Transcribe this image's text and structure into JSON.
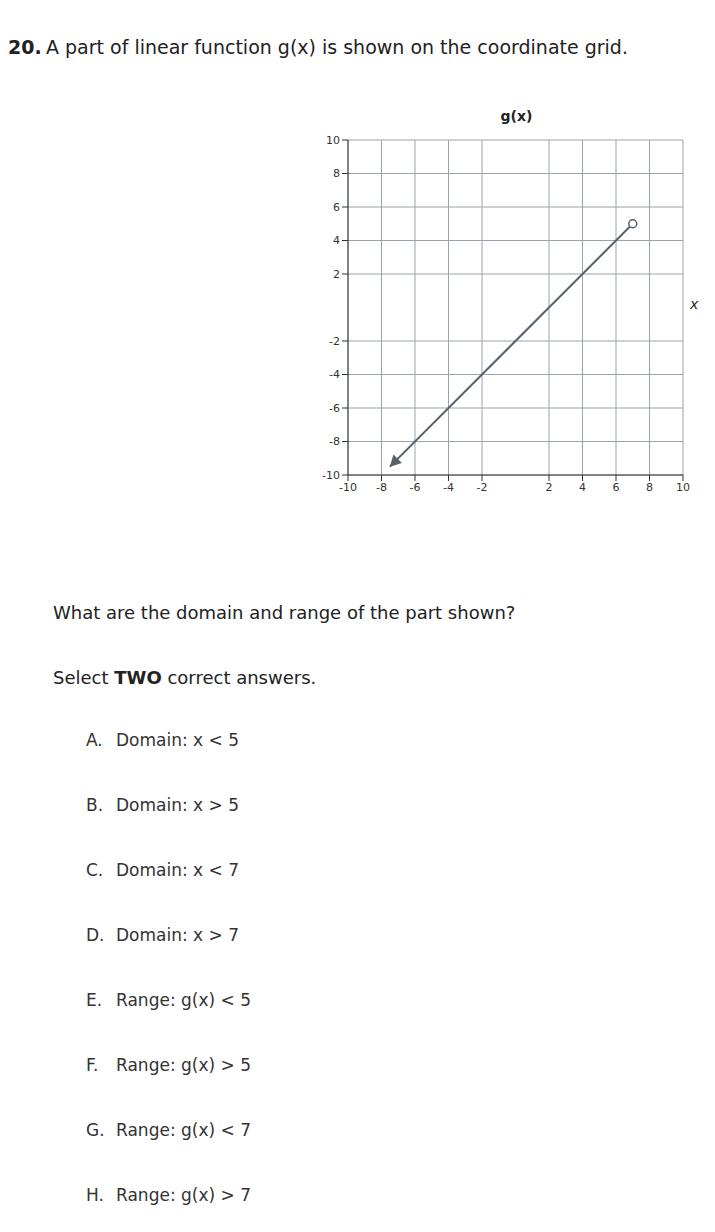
{
  "question": {
    "number": "20.",
    "text": "A part of linear function g(x) is shown on the coordinate grid."
  },
  "chart_data": {
    "type": "line",
    "x_label": "x",
    "y_label": "g(x)",
    "xlim": [
      -10,
      10
    ],
    "ylim": [
      -10,
      10
    ],
    "xticks": [
      -10,
      -8,
      -6,
      -4,
      -2,
      2,
      4,
      6,
      8,
      10
    ],
    "yticks": [
      -10,
      -8,
      -6,
      -4,
      -2,
      2,
      4,
      6,
      8,
      10
    ],
    "grid": true,
    "series": [
      {
        "x": [
          -7.5,
          7
        ],
        "values": [
          -9.5,
          5
        ],
        "color": "#56616c",
        "marker": "open_circle",
        "line_style": "solid"
      }
    ]
  },
  "prompt": "What are the domain and range of the part shown?",
  "instruction": {
    "before": "Select",
    "emphasis": "TWO",
    "after": "correct answers."
  },
  "options": [
    {
      "letter": "A.",
      "text": "Domain: x < 5"
    },
    {
      "letter": "B.",
      "text": "Domain: x > 5"
    },
    {
      "letter": "C.",
      "text": "Domain: x < 7"
    },
    {
      "letter": "D.",
      "text": "Domain: x > 7"
    },
    {
      "letter": "E.",
      "text": "Range: g(x) < 5"
    },
    {
      "letter": "F.",
      "text": "Range: g(x) > 5"
    },
    {
      "letter": "G.",
      "text": "Range: g(x) < 7"
    },
    {
      "letter": "H.",
      "text": "Range: g(x) > 7"
    }
  ]
}
